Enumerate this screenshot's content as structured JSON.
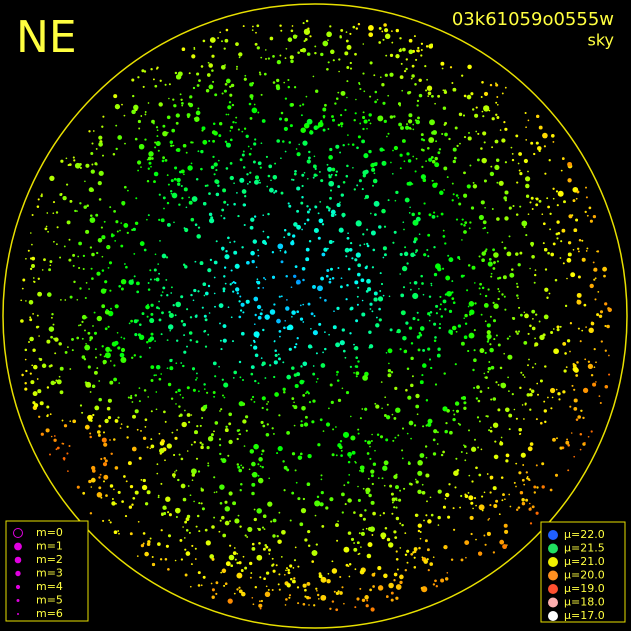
{
  "header": {
    "direction": "NE",
    "frame_id": "03k61059o0555w",
    "mode": "sky"
  },
  "magnitude_legend": {
    "items": [
      "m=0",
      "m=1",
      "m=2",
      "m=3",
      "m=4",
      "m=5",
      "m=6"
    ]
  },
  "brightness_legend": {
    "items": [
      "μ=22.0",
      "μ=21.5",
      "μ=21.0",
      "μ=20.0",
      "μ=19.0",
      "μ=18.0",
      "μ=17.0"
    ]
  }
}
